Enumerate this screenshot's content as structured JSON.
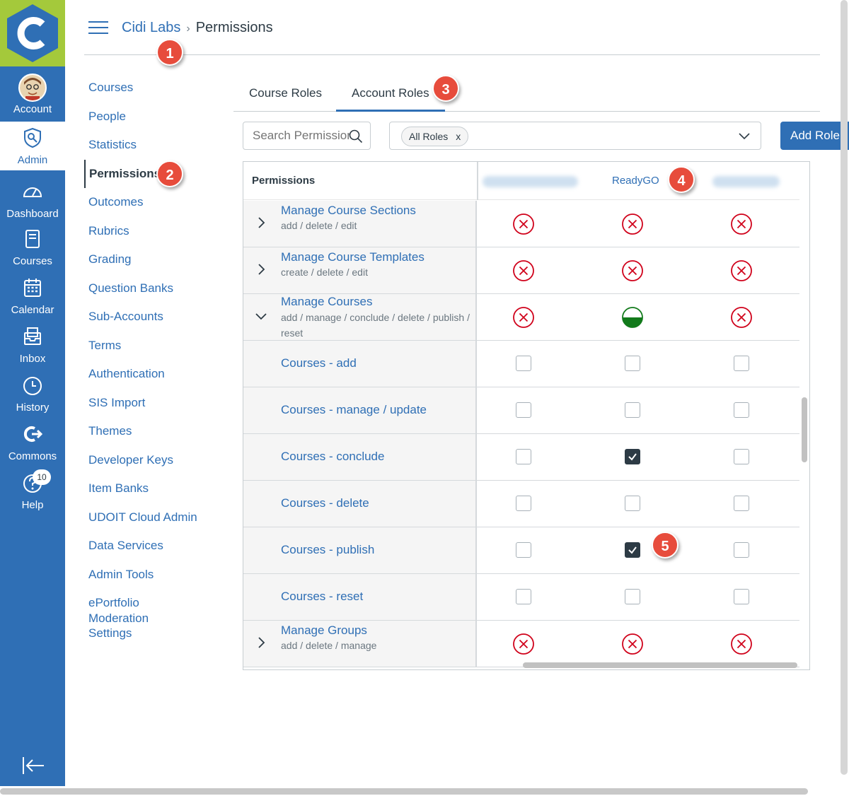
{
  "global_nav": {
    "items": [
      {
        "label": "Account",
        "icon": "avatar"
      },
      {
        "label": "Admin",
        "icon": "shield-icon"
      },
      {
        "label": "Dashboard",
        "icon": "dashboard-icon"
      },
      {
        "label": "Courses",
        "icon": "book-icon"
      },
      {
        "label": "Calendar",
        "icon": "calendar-icon"
      },
      {
        "label": "Inbox",
        "icon": "inbox-icon"
      },
      {
        "label": "History",
        "icon": "clock-icon"
      },
      {
        "label": "Commons",
        "icon": "commons-icon"
      },
      {
        "label": "Help",
        "icon": "help-icon",
        "badge": "10"
      }
    ],
    "brand_color": "#2f6fb5",
    "logo_color": "#a4c93b"
  },
  "header": {
    "breadcrumb_root": "Cidi Labs",
    "breadcrumb_current": "Permissions"
  },
  "steps": [
    "1",
    "2",
    "3",
    "4",
    "5"
  ],
  "left_nav": {
    "items": [
      "Courses",
      "People",
      "Statistics",
      "Permissions",
      "Outcomes",
      "Rubrics",
      "Grading",
      "Question Banks",
      "Sub-Accounts",
      "Terms",
      "Authentication",
      "SIS Import",
      "Themes",
      "Developer Keys",
      "Item Banks",
      "UDOIT Cloud Admin",
      "Data Services",
      "Admin Tools",
      "ePortfolio Moderation",
      "Settings"
    ],
    "active": "Permissions"
  },
  "tabs": [
    "Course Roles",
    "Account Roles"
  ],
  "filters": {
    "search_placeholder": "Search Permissions",
    "chip": "All Roles",
    "chip_remove": "x",
    "add_role": "Add Role"
  },
  "table": {
    "header": "Permissions",
    "role_header": "ReadyGO",
    "rows": [
      {
        "title": "Manage Course Sections",
        "sub": "add / delete / edit",
        "states": [
          "denied",
          "denied",
          "denied"
        ]
      },
      {
        "title": "Manage Course Templates",
        "sub": "create / delete / edit",
        "states": [
          "denied",
          "denied",
          "denied"
        ]
      },
      {
        "title": "Manage Courses",
        "sub": "add / manage / conclude / delete / publish / reset",
        "states": [
          "denied",
          "partial",
          "denied"
        ]
      },
      {
        "sublabel": "Courses - add",
        "checks": [
          false,
          false,
          false
        ]
      },
      {
        "sublabel": "Courses - manage / update",
        "checks": [
          false,
          false,
          false
        ]
      },
      {
        "sublabel": "Courses - conclude",
        "checks": [
          false,
          true,
          false
        ]
      },
      {
        "sublabel": "Courses - delete",
        "checks": [
          false,
          false,
          false
        ]
      },
      {
        "sublabel": "Courses - publish",
        "checks": [
          false,
          true,
          false
        ]
      },
      {
        "sublabel": "Courses - reset",
        "checks": [
          false,
          false,
          false
        ]
      },
      {
        "title": "Manage Groups",
        "sub": "add / delete / manage",
        "states": [
          "denied",
          "denied",
          "denied"
        ]
      }
    ]
  },
  "colors": {
    "denied": "#d0021b",
    "partial": "#127a1b",
    "marker": "#e74c3c"
  }
}
